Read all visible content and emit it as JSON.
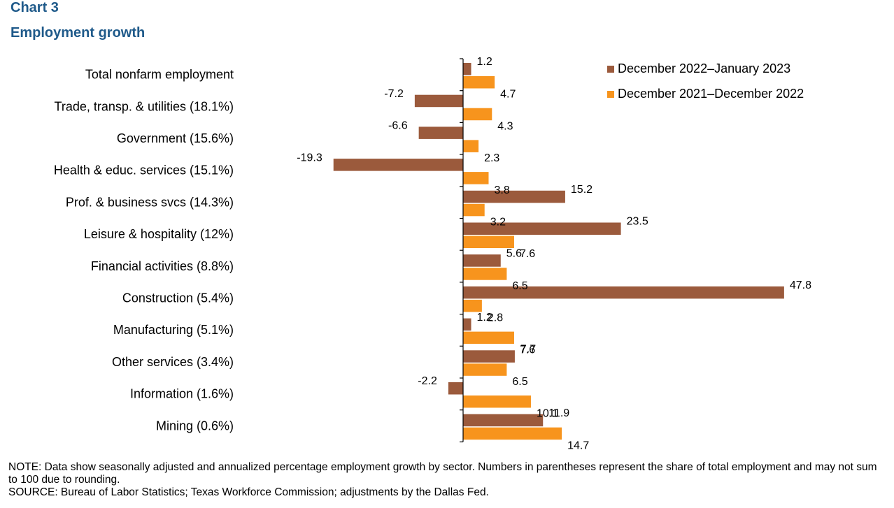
{
  "header": {
    "chart_number": "Chart 3",
    "title": "Employment  growth"
  },
  "footnotes": {
    "note": "NOTE: Data show seasonally adjusted and annualized percentage employment growth by sector. Numbers in parentheses represent the share of total employment and may not sum to 100 due to rounding.",
    "source": "SOURCE: Bureau of Labor Statistics; Texas Workforce Commission; adjustments by the Dallas Fed."
  },
  "colors": {
    "series_1": "#9b5a3c",
    "series_2": "#f7941d",
    "title": "#1f5a8a"
  },
  "chart_data": {
    "type": "bar",
    "orientation": "horizontal",
    "title": "Employment  growth",
    "categories": [
      "Total nonfarm employment",
      "Trade, transp. & utilities (18.1%)",
      "Government (15.6%)",
      "Health & educ. services (15.1%)",
      "Prof. & business svcs (14.3%)",
      "Leisure & hospitality (12%)",
      "Financial activities (8.8%)",
      "Construction (5.4%)",
      "Manufacturing (5.1%)",
      "Other services (3.4%)",
      "Information (1.6%)",
      "Mining (0.6%)"
    ],
    "series": [
      {
        "name": "December 2022–January 2023",
        "values": [
          1.2,
          -7.2,
          -6.6,
          -19.3,
          15.2,
          23.5,
          5.6,
          47.8,
          1.2,
          7.7,
          -2.2,
          11.9
        ],
        "labels": [
          "1.2",
          "-7.2",
          "-6.6",
          "-19.3",
          "15.2",
          "23.5",
          "5.6",
          "47.8",
          "1.2",
          "7.7",
          "-2.2",
          "11.9"
        ]
      },
      {
        "name": "December 2021–December 2022",
        "values": [
          4.7,
          4.3,
          2.3,
          3.8,
          3.2,
          7.6,
          6.5,
          2.8,
          7.6,
          6.5,
          10.1,
          14.7
        ],
        "labels": [
          "4.7",
          "4.3",
          "2.3",
          "3.8",
          "3.2",
          "7.6",
          "6.5",
          "2.8",
          "7.6",
          "6.5",
          "10.1",
          "14.7"
        ]
      }
    ],
    "xlim": [
      -19.3,
      47.8
    ],
    "grid": false,
    "legend_position": "top-right",
    "data_labels": true
  }
}
